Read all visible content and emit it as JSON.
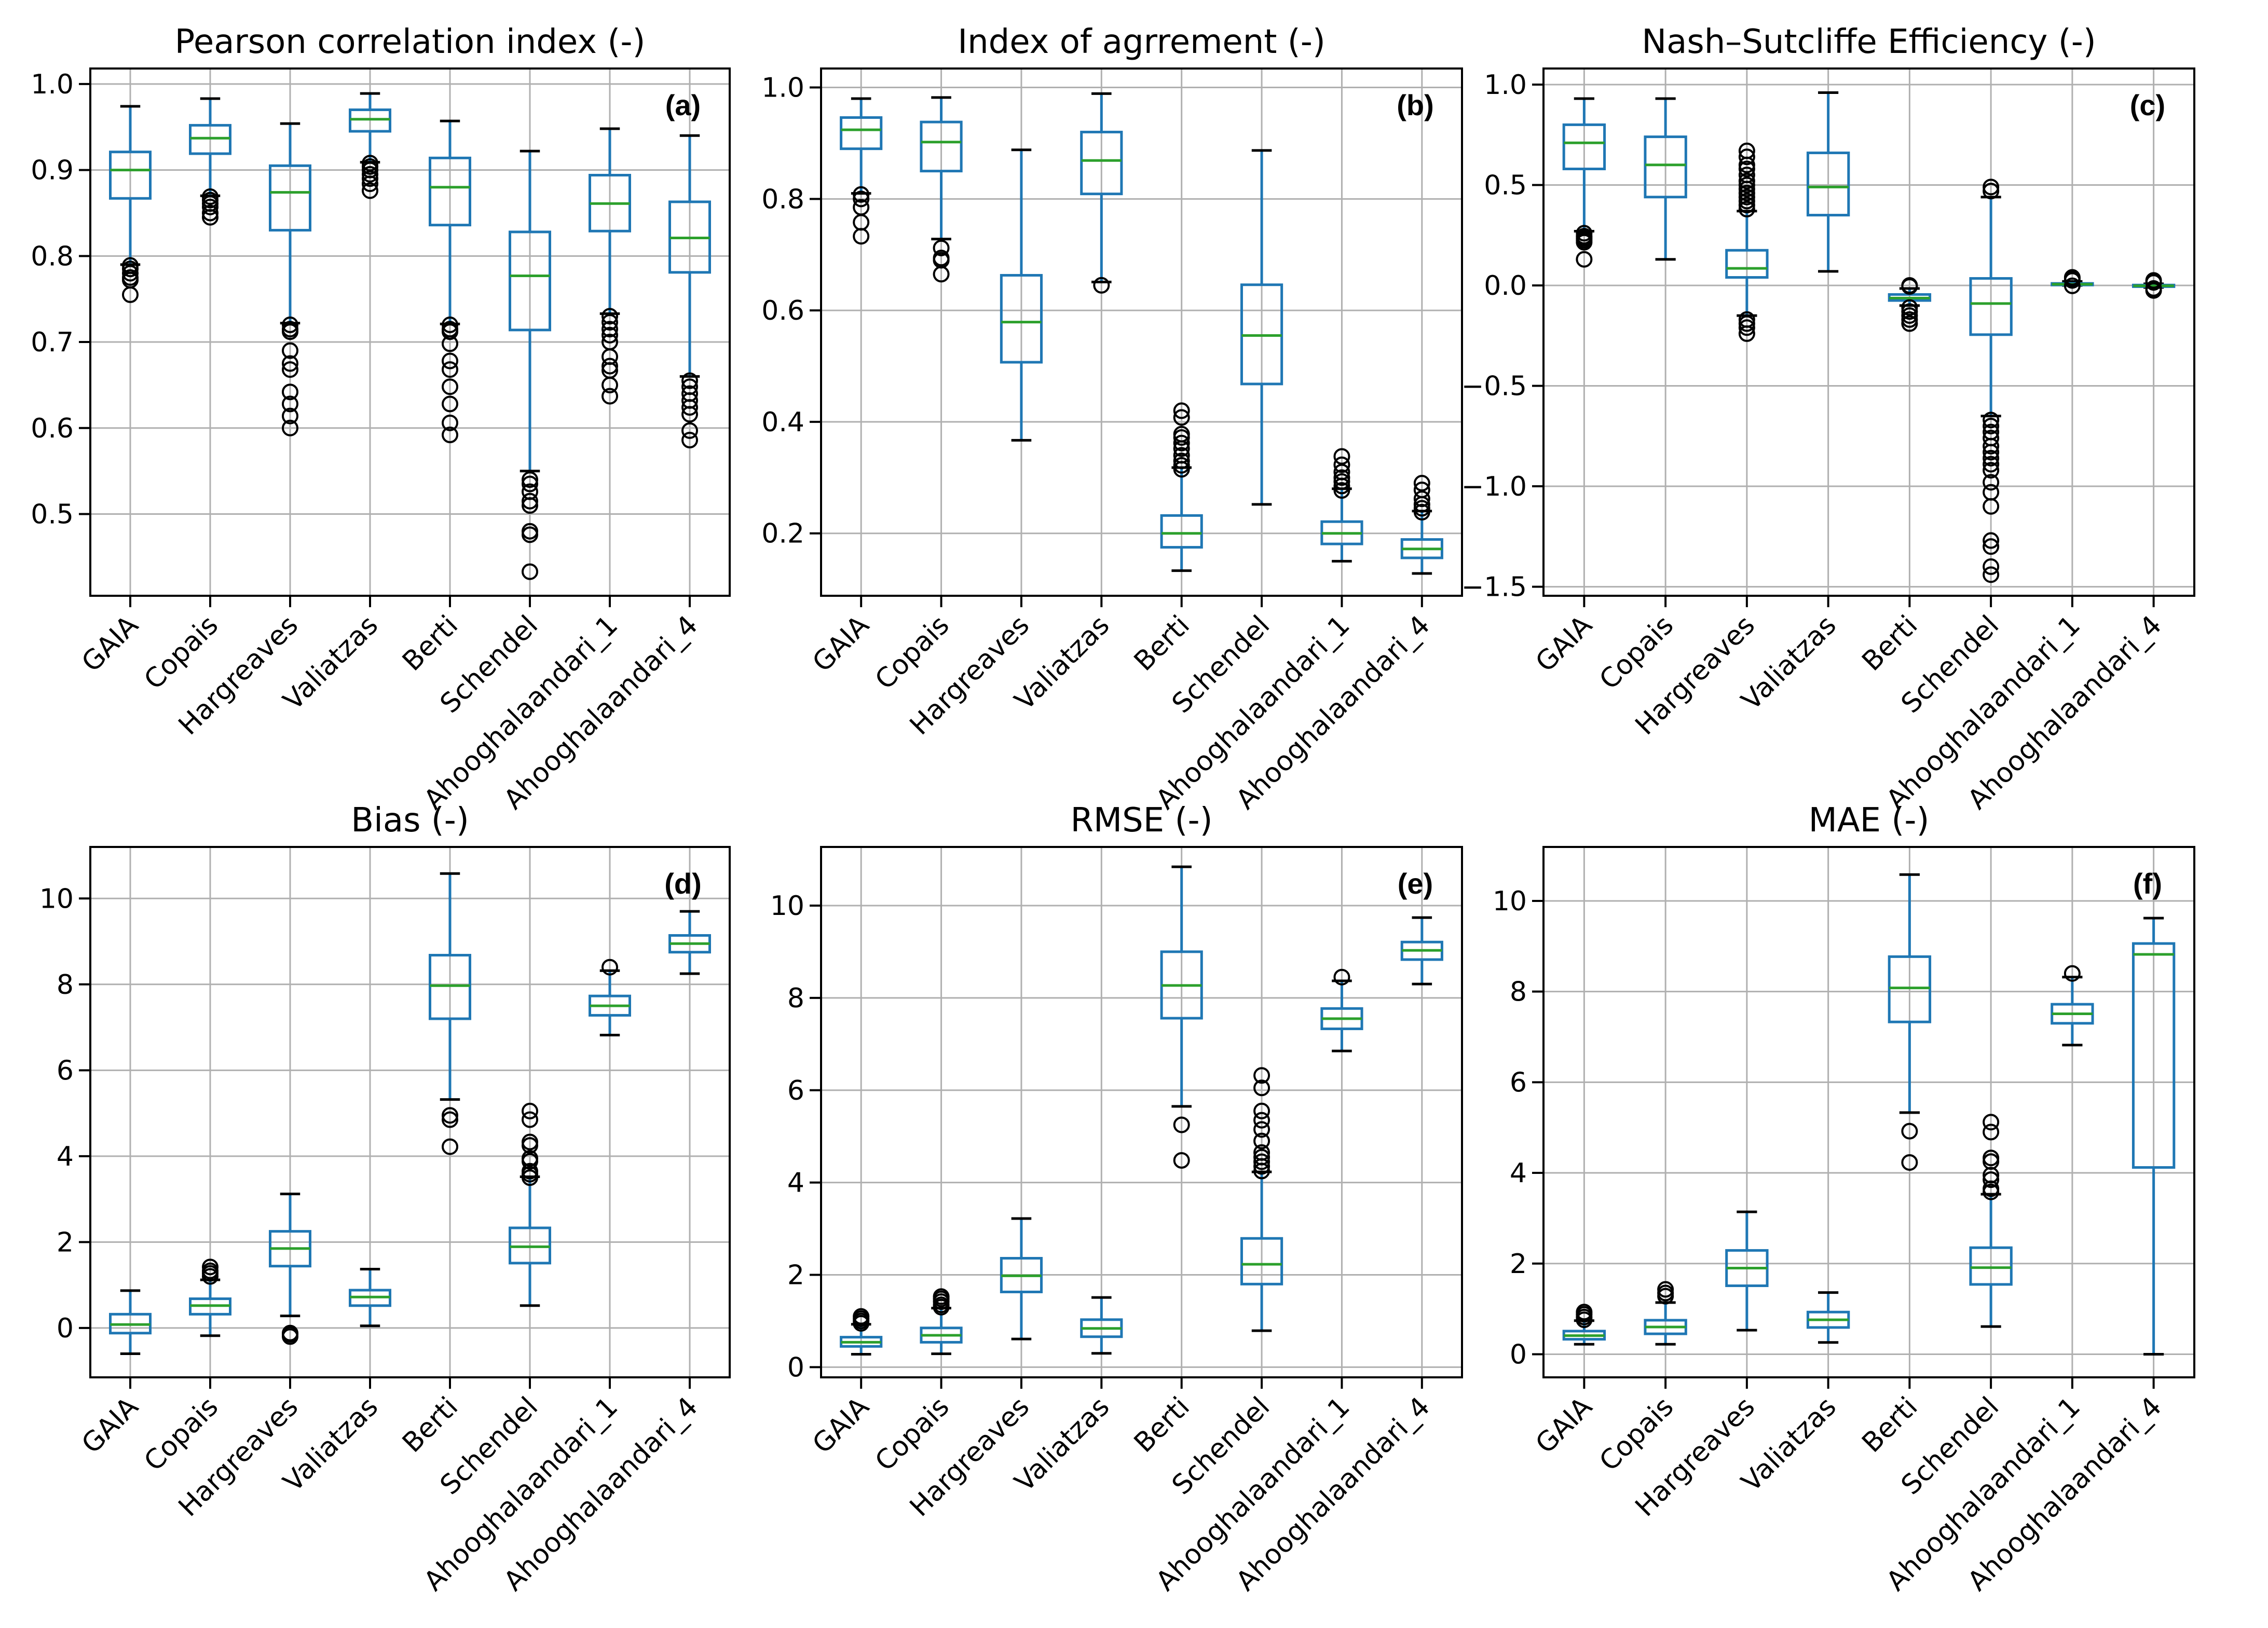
{
  "figure": {
    "style": {
      "box_color": "#1f77b4",
      "whisker_color": "#1f77b4",
      "median_color": "#2ca02c",
      "cap_color": "#000000",
      "flier_color": "#000000",
      "grid_color": "#b0b0b0"
    }
  },
  "chart_data": [
    {
      "type": "box",
      "panel_label": "(a)",
      "title": "Pearson correlation index (-)",
      "xlabel": "",
      "ylabel": "",
      "categories": [
        "GAIA",
        "Copais",
        "Hargreaves",
        "Valiatzas",
        "Berti",
        "Schendel",
        "Ahooghalaandari_1",
        "Ahooghalaandari_4"
      ],
      "ylim": [
        0.405,
        1.018
      ],
      "yticks": [
        0.5,
        0.6,
        0.7,
        0.8,
        0.9,
        1.0
      ],
      "ytick_labels": [
        "0.5",
        "0.6",
        "0.7",
        "0.8",
        "0.9",
        "1.0"
      ],
      "grid": true,
      "boxes": [
        {
          "whislo": 0.79,
          "q1": 0.867,
          "med": 0.9,
          "q3": 0.921,
          "whishi": 0.974,
          "fliers": [
            0.789,
            0.785,
            0.78,
            0.775,
            0.772,
            0.755
          ]
        },
        {
          "whislo": 0.87,
          "q1": 0.919,
          "med": 0.937,
          "q3": 0.952,
          "whishi": 0.983,
          "fliers": [
            0.869,
            0.865,
            0.861,
            0.857,
            0.85,
            0.845
          ]
        },
        {
          "whislo": 0.722,
          "q1": 0.83,
          "med": 0.874,
          "q3": 0.905,
          "whishi": 0.954,
          "fliers": [
            0.72,
            0.715,
            0.712,
            0.69,
            0.675,
            0.668,
            0.642,
            0.628,
            0.614,
            0.6
          ]
        },
        {
          "whislo": 0.909,
          "q1": 0.945,
          "med": 0.959,
          "q3": 0.97,
          "whishi": 0.989,
          "fliers": [
            0.908,
            0.904,
            0.9,
            0.895,
            0.89,
            0.884,
            0.876
          ]
        },
        {
          "whislo": 0.721,
          "q1": 0.836,
          "med": 0.88,
          "q3": 0.914,
          "whishi": 0.957,
          "fliers": [
            0.72,
            0.715,
            0.712,
            0.698,
            0.678,
            0.668,
            0.648,
            0.628,
            0.606,
            0.592
          ]
        },
        {
          "whislo": 0.55,
          "q1": 0.714,
          "med": 0.777,
          "q3": 0.828,
          "whishi": 0.922,
          "fliers": [
            0.54,
            0.535,
            0.526,
            0.515,
            0.51,
            0.48,
            0.476,
            0.433
          ]
        },
        {
          "whislo": 0.733,
          "q1": 0.829,
          "med": 0.861,
          "q3": 0.894,
          "whishi": 0.948,
          "fliers": [
            0.73,
            0.723,
            0.715,
            0.708,
            0.7,
            0.683,
            0.672,
            0.667,
            0.65,
            0.637
          ]
        },
        {
          "whislo": 0.66,
          "q1": 0.781,
          "med": 0.821,
          "q3": 0.863,
          "whishi": 0.94,
          "fliers": [
            0.655,
            0.648,
            0.64,
            0.632,
            0.624,
            0.616,
            0.597,
            0.586
          ]
        }
      ]
    },
    {
      "type": "box",
      "panel_label": "(b)",
      "title": "Index of agrrement (-)",
      "xlabel": "",
      "ylabel": "",
      "categories": [
        "GAIA",
        "Copais",
        "Hargreaves",
        "Valiatzas",
        "Berti",
        "Schendel",
        "Ahooghalaandari_1",
        "Ahooghalaandari_4"
      ],
      "ylim": [
        0.088,
        1.034
      ],
      "yticks": [
        0.2,
        0.4,
        0.6,
        0.8,
        1.0
      ],
      "ytick_labels": [
        "0.2",
        "0.4",
        "0.6",
        "0.8",
        "1.0"
      ],
      "grid": true,
      "boxes": [
        {
          "whislo": 0.81,
          "q1": 0.89,
          "med": 0.924,
          "q3": 0.946,
          "whishi": 0.98,
          "fliers": [
            0.808,
            0.8,
            0.785,
            0.758,
            0.733
          ]
        },
        {
          "whislo": 0.728,
          "q1": 0.85,
          "med": 0.902,
          "q3": 0.938,
          "whishi": 0.982,
          "fliers": [
            0.712,
            0.694,
            0.69,
            0.665
          ]
        },
        {
          "whislo": 0.367,
          "q1": 0.507,
          "med": 0.579,
          "q3": 0.663,
          "whishi": 0.888,
          "fliers": []
        },
        {
          "whislo": 0.651,
          "q1": 0.809,
          "med": 0.869,
          "q3": 0.92,
          "whishi": 0.989,
          "fliers": [
            0.645
          ]
        },
        {
          "whislo": 0.133,
          "q1": 0.175,
          "med": 0.2,
          "q3": 0.232,
          "whishi": 0.318,
          "fliers": [
            0.315,
            0.322,
            0.33,
            0.34,
            0.352,
            0.362,
            0.372,
            0.378,
            0.408,
            0.42
          ]
        },
        {
          "whislo": 0.252,
          "q1": 0.468,
          "med": 0.555,
          "q3": 0.646,
          "whishi": 0.887,
          "fliers": []
        },
        {
          "whislo": 0.15,
          "q1": 0.181,
          "med": 0.2,
          "q3": 0.221,
          "whishi": 0.28,
          "fliers": [
            0.277,
            0.285,
            0.293,
            0.3,
            0.31,
            0.323,
            0.338
          ]
        },
        {
          "whislo": 0.128,
          "q1": 0.156,
          "med": 0.172,
          "q3": 0.189,
          "whishi": 0.24,
          "fliers": [
            0.238,
            0.245,
            0.252,
            0.262,
            0.278,
            0.29
          ]
        }
      ]
    },
    {
      "type": "box",
      "panel_label": "(c)",
      "title": "Nash–Sutcliffe Efficiency (-)",
      "xlabel": "",
      "ylabel": "",
      "categories": [
        "GAIA",
        "Copais",
        "Hargreaves",
        "Valiatzas",
        "Berti",
        "Schendel",
        "Ahooghalaandari_1",
        "Ahooghalaandari_4"
      ],
      "ylim": [
        -1.545,
        1.08
      ],
      "yticks": [
        -1.5,
        -1.0,
        -0.5,
        0.0,
        0.5,
        1.0
      ],
      "ytick_labels": [
        "−1.5",
        "−1.0",
        "−0.5",
        "0.0",
        "0.5",
        "1.0"
      ],
      "grid": true,
      "boxes": [
        {
          "whislo": 0.27,
          "q1": 0.58,
          "med": 0.71,
          "q3": 0.8,
          "whishi": 0.93,
          "fliers": [
            0.26,
            0.245,
            0.235,
            0.225,
            0.215,
            0.13
          ]
        },
        {
          "whislo": 0.13,
          "q1": 0.44,
          "med": 0.6,
          "q3": 0.74,
          "whishi": 0.93,
          "fliers": []
        },
        {
          "whislo": -0.15,
          "q1": 0.04,
          "med": 0.085,
          "q3": 0.175,
          "whishi": 0.37,
          "fliers": [
            0.38,
            0.4,
            0.42,
            0.44,
            0.46,
            0.48,
            0.5,
            0.52,
            0.55,
            0.58,
            0.6,
            0.64,
            0.67,
            -0.17,
            -0.19,
            -0.21,
            -0.24
          ]
        },
        {
          "whislo": 0.07,
          "q1": 0.35,
          "med": 0.49,
          "q3": 0.66,
          "whishi": 0.96,
          "fliers": []
        },
        {
          "whislo": -0.1,
          "q1": -0.075,
          "med": -0.063,
          "q3": -0.045,
          "whishi": -0.015,
          "fliers": [
            -0.005,
            0.0,
            -0.11,
            -0.13,
            -0.15,
            -0.17,
            -0.19
          ]
        },
        {
          "whislo": -0.65,
          "q1": -0.245,
          "med": -0.09,
          "q3": 0.035,
          "whishi": 0.44,
          "fliers": [
            0.47,
            0.49,
            -0.67,
            -0.7,
            -0.73,
            -0.76,
            -0.8,
            -0.83,
            -0.86,
            -0.89,
            -0.92,
            -0.98,
            -1.03,
            -1.1,
            -1.27,
            -1.3,
            -1.4,
            -1.44
          ]
        },
        {
          "whislo": 0.0,
          "q1": 0.002,
          "med": 0.006,
          "q3": 0.01,
          "whishi": 0.02,
          "fliers": [
            0.025,
            0.035,
            0.04,
            -0.002
          ]
        },
        {
          "whislo": -0.01,
          "q1": -0.006,
          "med": -0.002,
          "q3": 0.002,
          "whishi": 0.008,
          "fliers": [
            0.015,
            0.025,
            -0.015,
            -0.025
          ]
        }
      ]
    },
    {
      "type": "box",
      "panel_label": "(d)",
      "title": "Bias (-)",
      "xlabel": "",
      "ylabel": "",
      "categories": [
        "GAIA",
        "Copais",
        "Hargreaves",
        "Valiatzas",
        "Berti",
        "Schendel",
        "Ahooghalaandari_1",
        "Ahooghalaandari_4"
      ],
      "ylim": [
        -1.15,
        11.2
      ],
      "yticks": [
        0,
        2,
        4,
        6,
        8,
        10
      ],
      "ytick_labels": [
        "0",
        "2",
        "4",
        "6",
        "8",
        "10"
      ],
      "grid": true,
      "boxes": [
        {
          "whislo": -0.6,
          "q1": -0.12,
          "med": 0.08,
          "q3": 0.32,
          "whishi": 0.87,
          "fliers": []
        },
        {
          "whislo": -0.18,
          "q1": 0.32,
          "med": 0.52,
          "q3": 0.68,
          "whishi": 1.12,
          "fliers": [
            1.2,
            1.27,
            1.33,
            1.42
          ]
        },
        {
          "whislo": 0.28,
          "q1": 1.44,
          "med": 1.85,
          "q3": 2.25,
          "whishi": 3.12,
          "fliers": [
            -0.12,
            -0.15,
            -0.2
          ]
        },
        {
          "whislo": 0.05,
          "q1": 0.52,
          "med": 0.72,
          "q3": 0.88,
          "whishi": 1.37,
          "fliers": []
        },
        {
          "whislo": 5.32,
          "q1": 7.2,
          "med": 7.97,
          "q3": 8.68,
          "whishi": 10.58,
          "fliers": [
            4.95,
            4.85,
            4.22
          ]
        },
        {
          "whislo": 0.52,
          "q1": 1.51,
          "med": 1.89,
          "q3": 2.33,
          "whishi": 3.52,
          "fliers": [
            3.5,
            3.58,
            3.65,
            3.88,
            3.95,
            4.25,
            4.33,
            4.85,
            5.05
          ]
        },
        {
          "whislo": 6.82,
          "q1": 7.28,
          "med": 7.5,
          "q3": 7.73,
          "whishi": 8.32,
          "fliers": [
            8.4
          ]
        },
        {
          "whislo": 8.25,
          "q1": 8.75,
          "med": 8.95,
          "q3": 9.14,
          "whishi": 9.7,
          "fliers": []
        }
      ]
    },
    {
      "type": "box",
      "panel_label": "(e)",
      "title": "RMSE (-)",
      "xlabel": "",
      "ylabel": "",
      "categories": [
        "GAIA",
        "Copais",
        "Hargreaves",
        "Valiatzas",
        "Berti",
        "Schendel",
        "Ahooghalaandari_1",
        "Ahooghalaandari_4"
      ],
      "ylim": [
        -0.22,
        11.27
      ],
      "yticks": [
        0,
        2,
        4,
        6,
        8,
        10
      ],
      "ytick_labels": [
        "0",
        "2",
        "4",
        "6",
        "8",
        "10"
      ],
      "grid": true,
      "boxes": [
        {
          "whislo": 0.28,
          "q1": 0.45,
          "med": 0.54,
          "q3": 0.65,
          "whishi": 0.93,
          "fliers": [
            0.95,
            1.0,
            1.05,
            1.1
          ]
        },
        {
          "whislo": 0.29,
          "q1": 0.54,
          "med": 0.69,
          "q3": 0.85,
          "whishi": 1.28,
          "fliers": [
            1.3,
            1.35,
            1.42,
            1.48,
            1.53
          ]
        },
        {
          "whislo": 0.61,
          "q1": 1.63,
          "med": 1.98,
          "q3": 2.36,
          "whishi": 3.22,
          "fliers": []
        },
        {
          "whislo": 0.3,
          "q1": 0.66,
          "med": 0.84,
          "q3": 1.03,
          "whishi": 1.51,
          "fliers": []
        },
        {
          "whislo": 5.65,
          "q1": 7.56,
          "med": 8.27,
          "q3": 9.0,
          "whishi": 10.84,
          "fliers": [
            5.25,
            4.48
          ]
        },
        {
          "whislo": 0.79,
          "q1": 1.8,
          "med": 2.23,
          "q3": 2.79,
          "whishi": 4.23,
          "fliers": [
            4.25,
            4.35,
            4.45,
            4.55,
            4.65,
            4.9,
            5.15,
            5.35,
            5.55,
            6.05,
            6.32
          ]
        },
        {
          "whislo": 6.85,
          "q1": 7.33,
          "med": 7.55,
          "q3": 7.77,
          "whishi": 8.37,
          "fliers": [
            8.45
          ]
        },
        {
          "whislo": 8.3,
          "q1": 8.83,
          "med": 9.03,
          "q3": 9.21,
          "whishi": 9.74,
          "fliers": []
        }
      ]
    },
    {
      "type": "box",
      "panel_label": "(f)",
      "title": "MAE (-)",
      "xlabel": "",
      "ylabel": "",
      "categories": [
        "GAIA",
        "Copais",
        "Hargreaves",
        "Valiatzas",
        "Berti",
        "Schendel",
        "Ahooghalaandari_1",
        "Ahooghalaandari_4"
      ],
      "ylim": [
        -0.51,
        11.19
      ],
      "yticks": [
        0,
        2,
        4,
        6,
        8,
        10
      ],
      "ytick_labels": [
        "0",
        "2",
        "4",
        "6",
        "8",
        "10"
      ],
      "grid": true,
      "boxes": [
        {
          "whislo": 0.22,
          "q1": 0.33,
          "med": 0.41,
          "q3": 0.51,
          "whishi": 0.74,
          "fliers": [
            0.76,
            0.82,
            0.88,
            0.93
          ]
        },
        {
          "whislo": 0.22,
          "q1": 0.45,
          "med": 0.6,
          "q3": 0.75,
          "whishi": 1.14,
          "fliers": [
            1.28,
            1.35,
            1.43
          ]
        },
        {
          "whislo": 0.53,
          "q1": 1.51,
          "med": 1.9,
          "q3": 2.29,
          "whishi": 3.14,
          "fliers": []
        },
        {
          "whislo": 0.26,
          "q1": 0.59,
          "med": 0.76,
          "q3": 0.93,
          "whishi": 1.36,
          "fliers": []
        },
        {
          "whislo": 5.33,
          "q1": 7.33,
          "med": 8.08,
          "q3": 8.77,
          "whishi": 10.58,
          "fliers": [
            4.92,
            4.23
          ]
        },
        {
          "whislo": 0.61,
          "q1": 1.54,
          "med": 1.91,
          "q3": 2.35,
          "whishi": 3.53,
          "fliers": [
            3.58,
            3.65,
            3.85,
            3.95,
            4.25,
            4.33,
            4.9,
            5.12
          ]
        },
        {
          "whislo": 6.82,
          "q1": 7.3,
          "med": 7.51,
          "q3": 7.72,
          "whishi": 8.32,
          "fliers": [
            8.4
          ]
        },
        {
          "whislo": 0.0,
          "q1": 4.12,
          "med": 8.82,
          "q3": 9.06,
          "whishi": 9.62,
          "fliers": []
        }
      ]
    }
  ]
}
